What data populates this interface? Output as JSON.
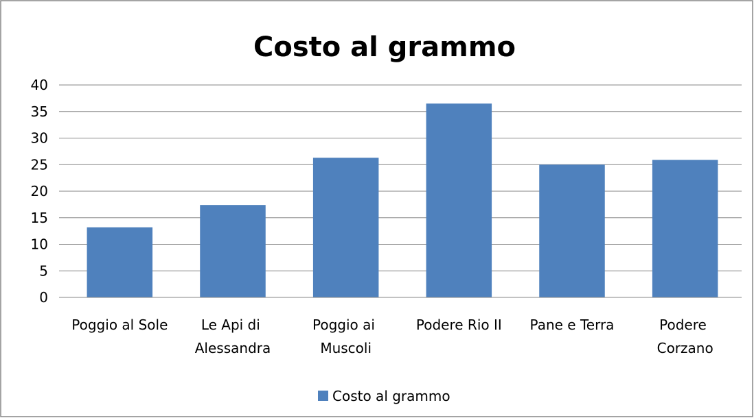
{
  "chart_data": {
    "type": "bar",
    "title": "Costo al grammo",
    "categories": [
      "Poggio al Sole",
      "Le Api di Alessandra",
      "Poggio ai Muscoli",
      "Podere Rio II",
      "Pane e Terra",
      "Podere Corzano"
    ],
    "series": [
      {
        "name": "Costo al grammo",
        "color": "#4f81bd",
        "values": [
          13.2,
          17.4,
          26.3,
          36.5,
          25.0,
          25.9
        ]
      }
    ],
    "ylim": [
      0,
      40
    ],
    "yticks": [
      0,
      5,
      10,
      15,
      20,
      25,
      30,
      35,
      40
    ],
    "grid": true,
    "legend": "bottom"
  }
}
